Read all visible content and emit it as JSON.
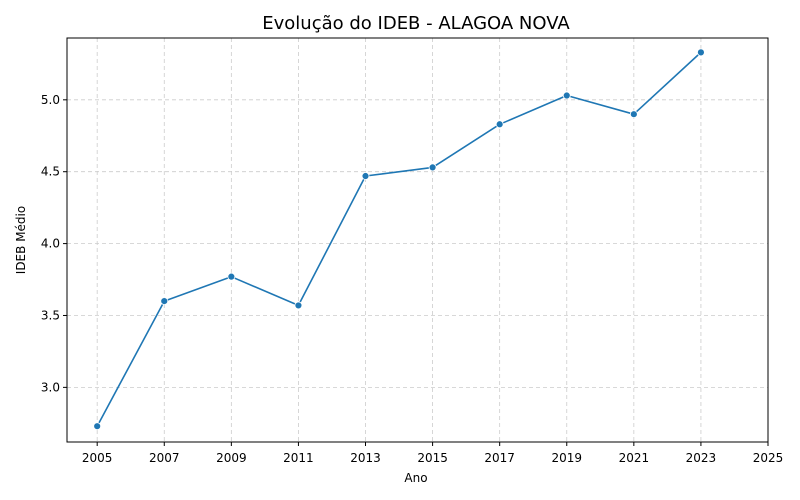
{
  "chart_data": {
    "type": "line",
    "title": "Evolução do IDEB - ALAGOA NOVA",
    "xlabel": "Ano",
    "ylabel": "IDEB Médio",
    "xlim": [
      2004.1,
      2025.0
    ],
    "ylim": [
      2.62,
      5.43
    ],
    "xticks": [
      2005,
      2007,
      2009,
      2011,
      2013,
      2015,
      2017,
      2019,
      2021,
      2023,
      2025
    ],
    "yticks": [
      3.0,
      3.5,
      4.0,
      4.5,
      5.0
    ],
    "ytick_labels": [
      "3.0",
      "3.5",
      "4.0",
      "4.5",
      "5.0"
    ],
    "grid": true,
    "color": "#1f77b4",
    "series": [
      {
        "x": [
          2005,
          2007,
          2009,
          2011,
          2013,
          2015,
          2017,
          2019,
          2021,
          2023
        ],
        "values": [
          2.73,
          3.6,
          3.77,
          3.57,
          4.47,
          4.53,
          4.83,
          5.03,
          4.9,
          5.33
        ]
      }
    ]
  }
}
